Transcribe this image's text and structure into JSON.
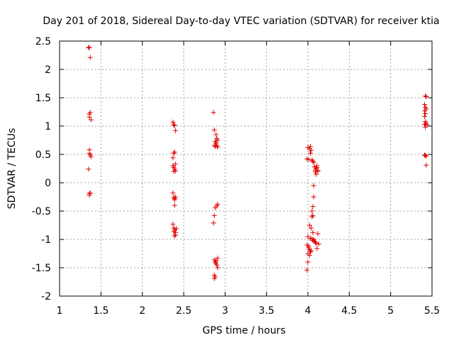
{
  "chart_data": {
    "type": "scatter",
    "title": "Day 201 of 2018, Sidereal Day-to-day VTEC variation (SDTVAR) for receiver ktia",
    "xlabel": "GPS time / hours",
    "ylabel": "SDTVAR / TECUs",
    "xlim": [
      1,
      5.5
    ],
    "ylim": [
      -2,
      2.5
    ],
    "xticks": [
      1,
      1.5,
      2,
      2.5,
      3,
      3.5,
      4,
      4.5,
      5,
      5.5
    ],
    "xtick_labels": [
      "1",
      "1.5",
      "2",
      "2.5",
      "3",
      "3.5",
      "4",
      "4.5",
      "5",
      "5.5"
    ],
    "yticks": [
      -2,
      -1.5,
      -1,
      -0.5,
      0,
      0.5,
      1,
      1.5,
      2,
      2.5
    ],
    "ytick_labels": [
      "-2",
      "-1.5",
      "-1",
      "-0.5",
      "0",
      "0.5",
      "1",
      "1.5",
      "2",
      "2.5"
    ],
    "grid": true,
    "marker": "+",
    "color": "#e00000",
    "series": [
      {
        "name": "SDTVAR",
        "points": [
          [
            1.35,
            2.39
          ],
          [
            1.36,
            2.38
          ],
          [
            1.37,
            2.21
          ],
          [
            1.36,
            1.21
          ],
          [
            1.36,
            1.16
          ],
          [
            1.37,
            1.24
          ],
          [
            1.38,
            1.11
          ],
          [
            1.36,
            0.58
          ],
          [
            1.36,
            0.52
          ],
          [
            1.37,
            0.49
          ],
          [
            1.38,
            0.46
          ],
          [
            1.35,
            0.24
          ],
          [
            1.36,
            -0.19
          ],
          [
            1.36,
            -0.22
          ],
          [
            1.37,
            -0.18
          ],
          [
            2.37,
            1.07
          ],
          [
            2.38,
            1.02
          ],
          [
            2.39,
            1.01
          ],
          [
            2.4,
            0.92
          ],
          [
            2.38,
            0.52
          ],
          [
            2.39,
            0.54
          ],
          [
            2.37,
            0.44
          ],
          [
            2.37,
            0.3
          ],
          [
            2.38,
            0.27
          ],
          [
            2.39,
            0.24
          ],
          [
            2.4,
            0.21
          ],
          [
            2.38,
            0.2
          ],
          [
            2.4,
            0.33
          ],
          [
            2.37,
            -0.18
          ],
          [
            2.38,
            -0.26
          ],
          [
            2.39,
            -0.28
          ],
          [
            2.4,
            -0.25
          ],
          [
            2.39,
            -0.3
          ],
          [
            2.39,
            -0.4
          ],
          [
            2.37,
            -0.73
          ],
          [
            2.38,
            -0.8
          ],
          [
            2.39,
            -0.83
          ],
          [
            2.4,
            -0.88
          ],
          [
            2.41,
            -0.81
          ],
          [
            2.4,
            -0.92
          ],
          [
            2.38,
            -0.86
          ],
          [
            2.39,
            -0.94
          ],
          [
            2.86,
            1.24
          ],
          [
            2.87,
            0.93
          ],
          [
            2.89,
            0.85
          ],
          [
            2.9,
            0.78
          ],
          [
            2.87,
            0.66
          ],
          [
            2.88,
            0.64
          ],
          [
            2.89,
            0.7
          ],
          [
            2.9,
            0.66
          ],
          [
            2.91,
            0.63
          ],
          [
            2.88,
            0.73
          ],
          [
            2.91,
            0.75
          ],
          [
            2.88,
            -0.44
          ],
          [
            2.9,
            -0.41
          ],
          [
            2.91,
            -0.38
          ],
          [
            2.87,
            -0.58
          ],
          [
            2.86,
            -0.71
          ],
          [
            2.87,
            -1.36
          ],
          [
            2.88,
            -1.4
          ],
          [
            2.89,
            -1.38
          ],
          [
            2.9,
            -1.45
          ],
          [
            2.91,
            -1.33
          ],
          [
            2.89,
            -1.42
          ],
          [
            2.91,
            -1.5
          ],
          [
            2.87,
            -1.63
          ],
          [
            2.88,
            -1.66
          ],
          [
            2.87,
            -1.69
          ],
          [
            4.0,
            0.62
          ],
          [
            4.02,
            0.6
          ],
          [
            4.03,
            0.64
          ],
          [
            4.04,
            0.57
          ],
          [
            4.03,
            0.52
          ],
          [
            3.99,
            0.42
          ],
          [
            4.01,
            0.41
          ],
          [
            4.05,
            0.4
          ],
          [
            4.06,
            0.38
          ],
          [
            4.07,
            0.36
          ],
          [
            4.08,
            0.28
          ],
          [
            4.1,
            0.25
          ],
          [
            4.11,
            0.27
          ],
          [
            4.12,
            0.22
          ],
          [
            4.09,
            0.19
          ],
          [
            4.1,
            0.15
          ],
          [
            4.12,
            0.2
          ],
          [
            4.11,
            0.3
          ],
          [
            4.09,
            0.22
          ],
          [
            4.07,
            -0.05
          ],
          [
            4.07,
            -0.25
          ],
          [
            4.06,
            -0.42
          ],
          [
            4.06,
            -0.58
          ],
          [
            4.05,
            -0.6
          ],
          [
            4.05,
            -0.5
          ],
          [
            4.02,
            -0.75
          ],
          [
            4.04,
            -0.8
          ],
          [
            4.06,
            -0.88
          ],
          [
            4.12,
            -0.9
          ],
          [
            4.0,
            -0.95
          ],
          [
            4.03,
            -0.98
          ],
          [
            4.07,
            -1.0
          ],
          [
            4.08,
            -1.03
          ],
          [
            4.09,
            -1.05
          ],
          [
            4.06,
            -1.02
          ],
          [
            4.1,
            -1.07
          ],
          [
            4.05,
            -0.99
          ],
          [
            3.99,
            -1.1
          ],
          [
            4.01,
            -1.15
          ],
          [
            4.02,
            -1.18
          ],
          [
            4.03,
            -1.22
          ],
          [
            4.04,
            -1.2
          ],
          [
            4.0,
            -1.25
          ],
          [
            4.02,
            -1.28
          ],
          [
            4.11,
            -1.16
          ],
          [
            4.13,
            -1.08
          ],
          [
            4.01,
            -1.12
          ],
          [
            4.0,
            -1.4
          ],
          [
            3.99,
            -1.54
          ],
          [
            5.42,
            1.53
          ],
          [
            5.43,
            1.52
          ],
          [
            5.41,
            1.38
          ],
          [
            5.42,
            1.33
          ],
          [
            5.43,
            1.3
          ],
          [
            5.41,
            1.27
          ],
          [
            5.42,
            1.22
          ],
          [
            5.41,
            1.17
          ],
          [
            5.42,
            1.08
          ],
          [
            5.43,
            1.05
          ],
          [
            5.41,
            1.03
          ],
          [
            5.44,
            1.02
          ],
          [
            5.42,
            0.98
          ],
          [
            5.41,
            0.49
          ],
          [
            5.42,
            0.48
          ],
          [
            5.43,
            0.47
          ],
          [
            5.43,
            0.31
          ]
        ]
      }
    ]
  }
}
